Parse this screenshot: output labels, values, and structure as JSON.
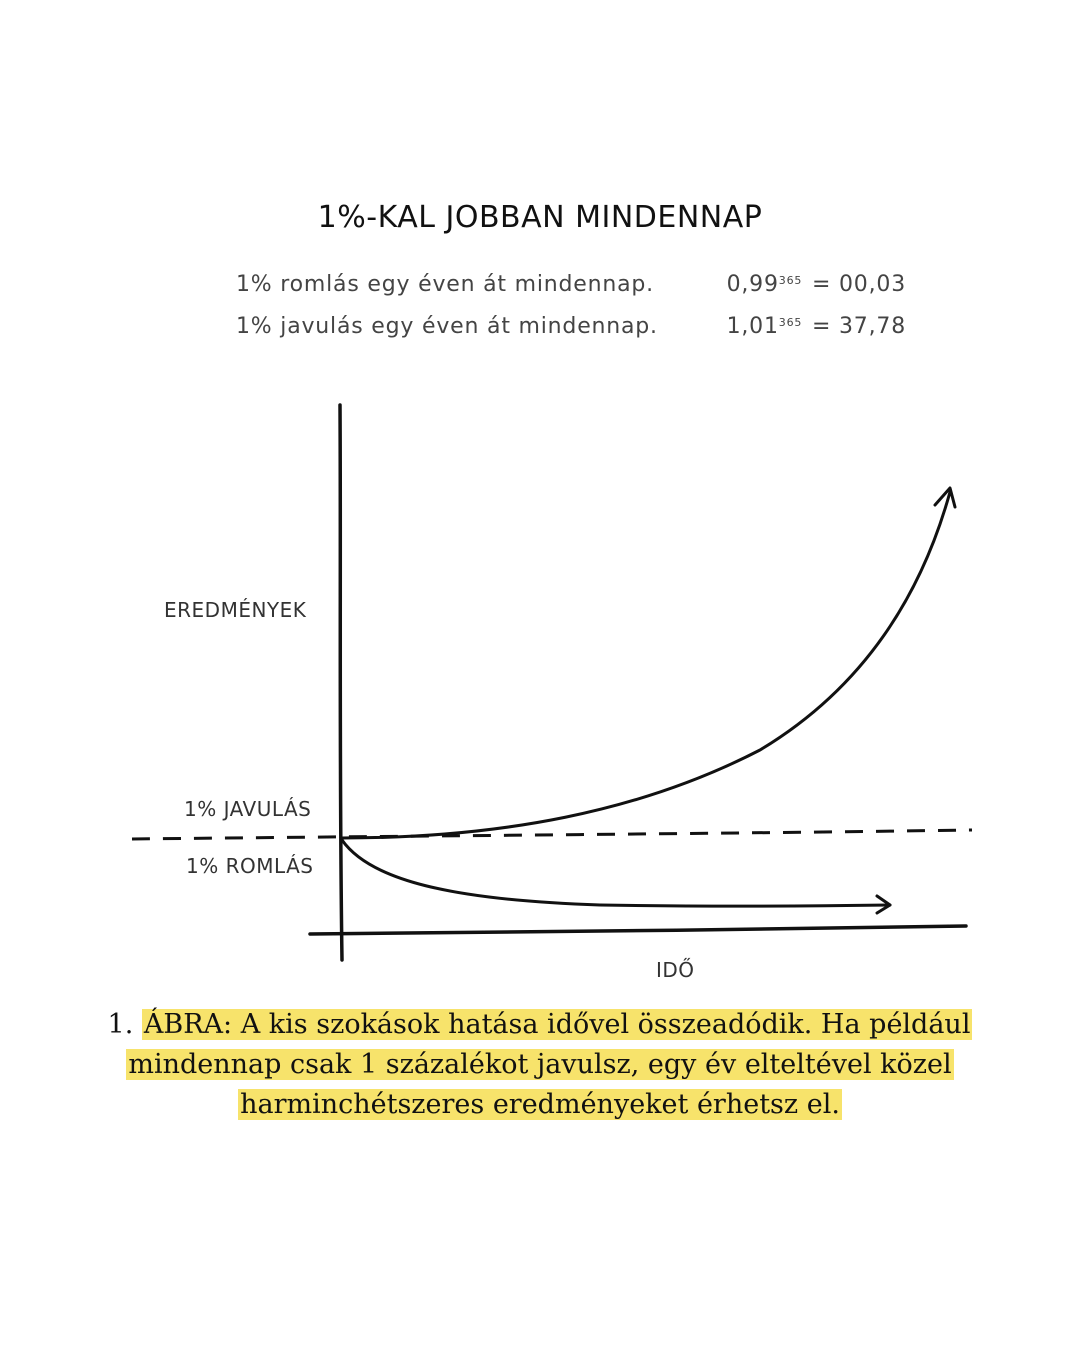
{
  "title": "1%-KAL JOBBAN MINDENNAP",
  "formulas": {
    "worse": {
      "text": "1% romlás egy éven át mindennap.",
      "base": "0,99",
      "exp": "365",
      "result": "= 00,03"
    },
    "better": {
      "text": "1% javulás egy éven át mindennap.",
      "base": "1,01",
      "exp": "365",
      "result": "= 37,78"
    }
  },
  "diagram": {
    "y_axis_label": "EREDMÉNYEK",
    "upper_label": "1% JAVULÁS",
    "lower_label": "1% ROMLÁS",
    "x_axis_label": "IDŐ"
  },
  "caption": {
    "number": "1.",
    "line1": "ÁBRA: A kis szokások hatása idővel összeadódik. Ha például",
    "line2": "mindennap csak 1 százalékot javulsz, egy év elteltével közel",
    "line3": "harminchétszeres eredményeket érhetsz el.",
    "highlight_color": "#f7e36b"
  }
}
